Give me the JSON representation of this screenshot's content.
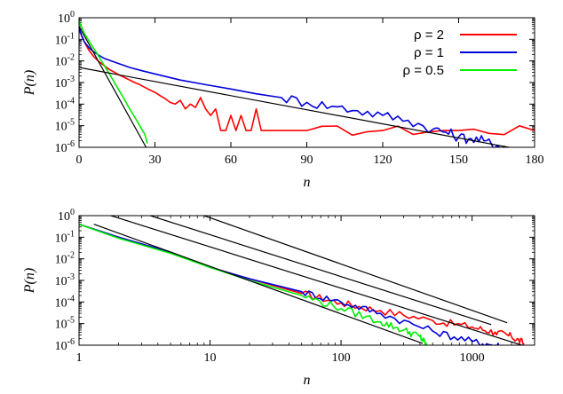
{
  "chart_data": [
    {
      "type": "line",
      "xlabel": "n",
      "ylabel": "P(n)",
      "xscale": "linear",
      "yscale": "log",
      "xlim": [
        0,
        180
      ],
      "ylim": [
        1e-06,
        1
      ],
      "xticks": [
        "0",
        "30",
        "60",
        "90",
        "120",
        "150",
        "180"
      ],
      "yticks": [
        {
          "base": "10",
          "exp": "0"
        },
        {
          "base": "10",
          "exp": "-1"
        },
        {
          "base": "10",
          "exp": "-2"
        },
        {
          "base": "10",
          "exp": "-3"
        },
        {
          "base": "10",
          "exp": "-4"
        },
        {
          "base": "10",
          "exp": "-5"
        },
        {
          "base": "10",
          "exp": "-6"
        }
      ],
      "legend_position": "top-right",
      "series": [
        {
          "name": "ρ = 2",
          "color": "#ff0000",
          "x": [
            0,
            2,
            4,
            6,
            8,
            10,
            12,
            14,
            16,
            18,
            20,
            22,
            24,
            26,
            28,
            30,
            32,
            34,
            36,
            38,
            40,
            42,
            44,
            46,
            48,
            50,
            52,
            54,
            56,
            58,
            60,
            62,
            64,
            66,
            68,
            70,
            72,
            90,
            120,
            150,
            180
          ],
          "y": [
            0.3,
            0.08,
            0.03,
            0.015,
            0.009,
            0.006,
            0.004,
            0.003,
            0.0022,
            0.0017,
            0.0013,
            0.001,
            0.0008,
            0.0006,
            0.00045,
            0.00035,
            0.00025,
            0.00018,
            0.00012,
            0.0001,
            0.00015,
            6e-05,
            0.0001,
            7e-05,
            0.0002,
            6e-05,
            3e-05,
            6e-05,
            6e-06,
            6e-06,
            3e-05,
            6e-06,
            3e-05,
            6e-06,
            6e-06,
            6e-05,
            6e-06,
            6e-06,
            6e-06,
            6e-06,
            6e-06
          ]
        },
        {
          "name": "ρ = 1",
          "color": "#0000dd",
          "x": [
            0,
            1,
            2,
            4,
            6,
            8,
            10,
            15,
            20,
            25,
            30,
            40,
            50,
            60,
            70,
            80,
            90,
            100,
            110,
            120,
            130,
            140,
            145,
            150,
            155,
            160,
            165,
            170
          ],
          "y": [
            0.35,
            0.15,
            0.08,
            0.04,
            0.025,
            0.018,
            0.013,
            0.008,
            0.005,
            0.0035,
            0.0025,
            0.0013,
            0.0008,
            0.0005,
            0.0003,
            0.0002,
            0.00012,
            8e-05,
            5e-05,
            3e-05,
            1.8e-05,
            7e-06,
            5e-06,
            3e-06,
            2.5e-06,
            2e-06,
            1.2e-06,
            1e-06
          ]
        },
        {
          "name": "ρ = 0.5",
          "color": "#00ee00",
          "x": [
            0,
            2,
            4,
            6,
            8,
            10,
            12,
            14,
            16,
            18,
            20,
            22,
            24,
            26,
            27
          ],
          "y": [
            0.7,
            0.2,
            0.08,
            0.035,
            0.015,
            0.006,
            0.0025,
            0.001,
            0.0004,
            0.00016,
            6e-05,
            2.5e-05,
            1e-05,
            4e-06,
            1.5e-06
          ]
        }
      ],
      "fit_lines": [
        {
          "color": "#000000",
          "x": [
            0,
            180
          ],
          "y": [
            0.005,
            6e-07
          ]
        },
        {
          "color": "#000000",
          "x": [
            0,
            26.5
          ],
          "y": [
            0.4,
            1e-06
          ]
        }
      ]
    },
    {
      "type": "line",
      "xlabel": "n",
      "ylabel": "P(n)",
      "xscale": "log",
      "yscale": "log",
      "xlim": [
        1,
        3000
      ],
      "ylim": [
        1e-06,
        1
      ],
      "xticks": [
        "1",
        "10",
        "100",
        "1000"
      ],
      "yticks": [
        {
          "base": "10",
          "exp": "0"
        },
        {
          "base": "10",
          "exp": "-1"
        },
        {
          "base": "10",
          "exp": "-2"
        },
        {
          "base": "10",
          "exp": "-3"
        },
        {
          "base": "10",
          "exp": "-4"
        },
        {
          "base": "10",
          "exp": "-5"
        },
        {
          "base": "10",
          "exp": "-6"
        }
      ],
      "series": [
        {
          "name": "ρ = 2",
          "color": "#ff0000",
          "x": [
            1,
            2,
            5,
            10,
            20,
            50,
            100,
            200,
            500,
            1000,
            1500,
            2000,
            2500
          ],
          "y": [
            0.4,
            0.1,
            0.02,
            0.004,
            0.0012,
            0.00025,
            9e-05,
            4e-05,
            1.4e-05,
            7e-06,
            4e-06,
            2.5e-06,
            1.2e-06
          ]
        },
        {
          "name": "ρ = 1",
          "color": "#0000dd",
          "x": [
            1,
            2,
            5,
            10,
            20,
            50,
            100,
            200,
            500,
            1000,
            1500,
            2000
          ],
          "y": [
            0.4,
            0.1,
            0.02,
            0.004,
            0.0012,
            0.0003,
            0.0001,
            3e-05,
            4.5e-06,
            1.5e-06,
            1e-06,
            8e-07
          ]
        },
        {
          "name": "ρ = 0.5",
          "color": "#00ee00",
          "x": [
            1,
            2,
            5,
            10,
            20,
            50,
            100,
            200,
            300,
            400,
            450
          ],
          "y": [
            0.4,
            0.09,
            0.018,
            0.004,
            0.001,
            0.0002,
            5e-05,
            1.2e-05,
            5e-06,
            2.5e-06,
            1e-06
          ]
        }
      ],
      "fit_lines": [
        {
          "color": "#000000",
          "x": [
            1.3,
            420
          ],
          "y": [
            0.4,
            1.2e-06
          ]
        },
        {
          "color": "#000000",
          "x": [
            1.75,
            2400
          ],
          "y": [
            1,
            1e-06
          ]
        },
        {
          "color": "#000000",
          "x": [
            3.5,
            1400
          ],
          "y": [
            1,
            9e-06
          ]
        },
        {
          "color": "#000000",
          "x": [
            9,
            1850
          ],
          "y": [
            1,
            1.1e-05
          ]
        }
      ]
    }
  ]
}
